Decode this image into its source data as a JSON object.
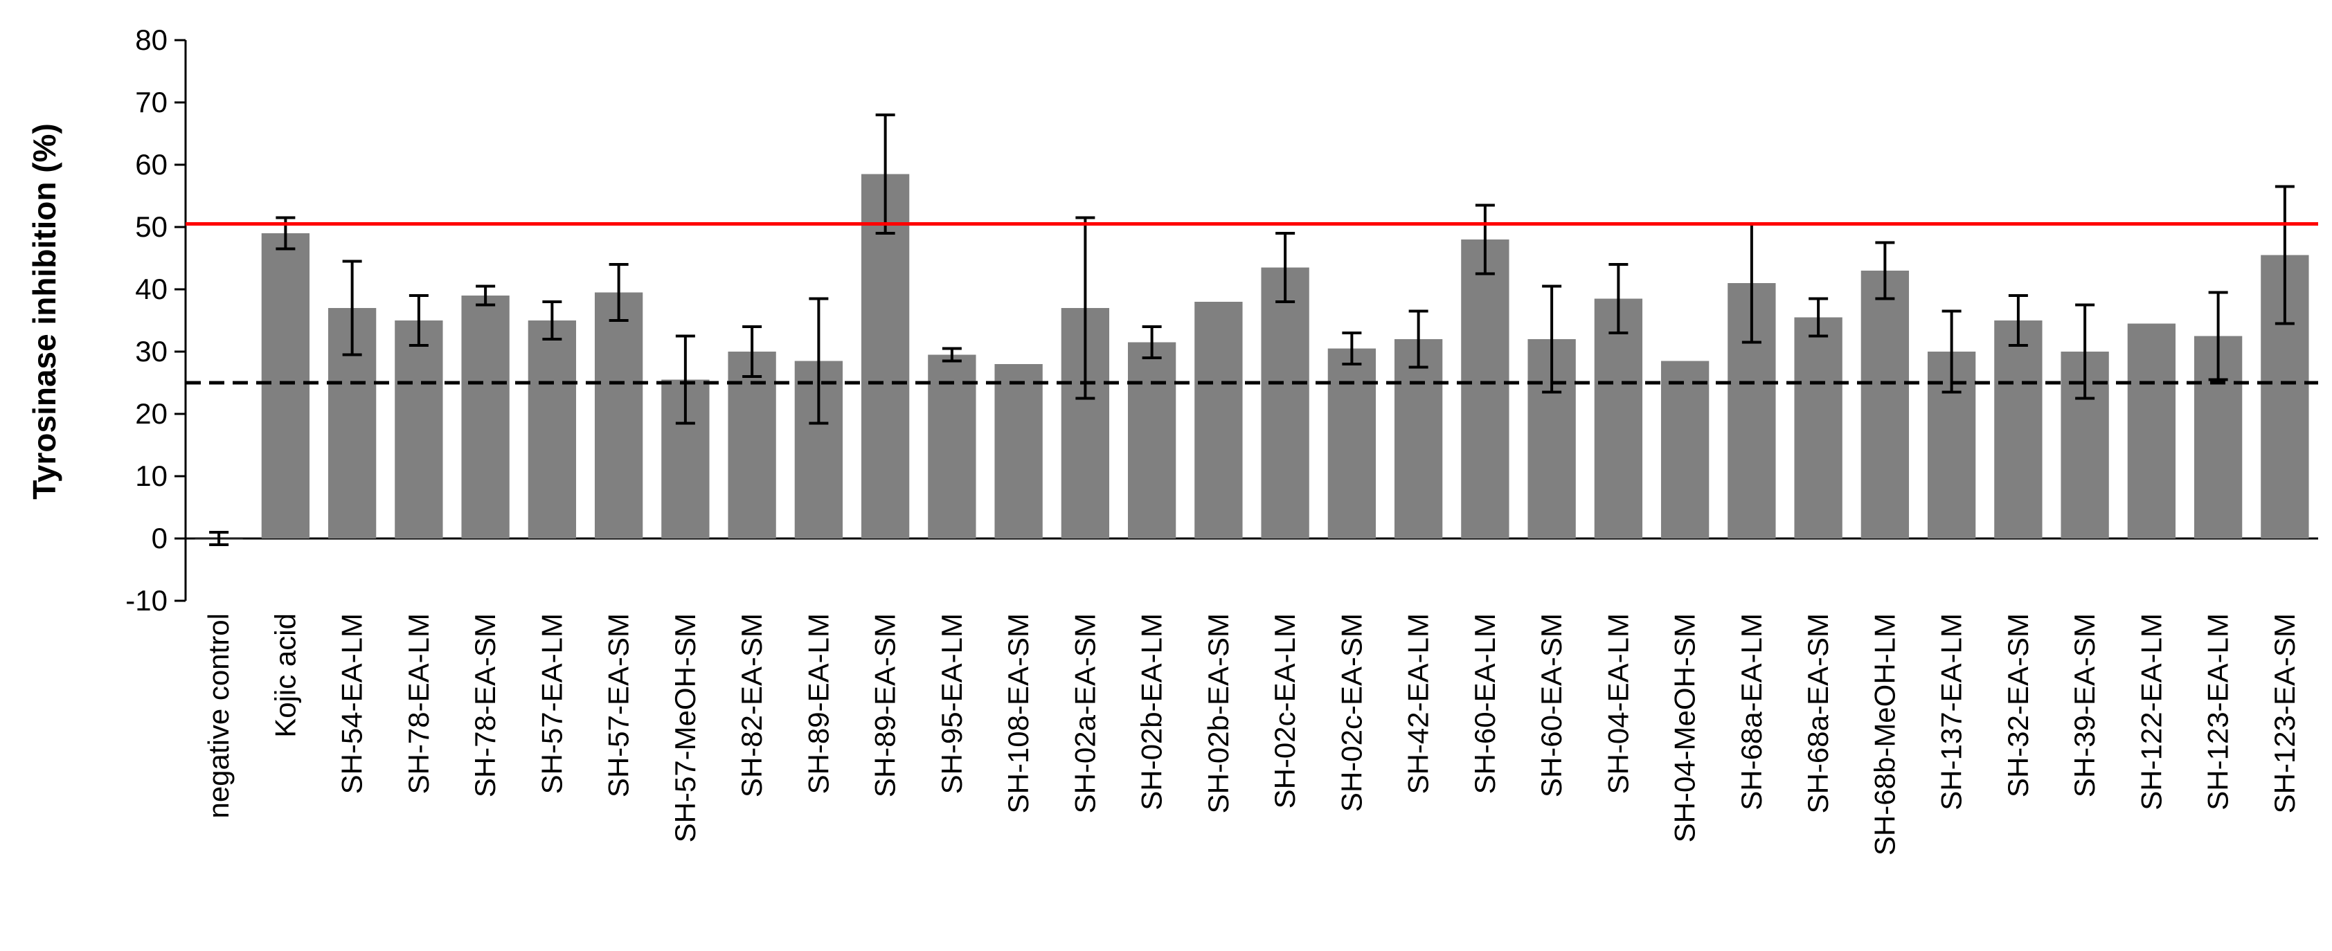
{
  "chart_data": {
    "type": "bar",
    "title": "",
    "xlabel": "",
    "ylabel": "Tyrosinase inhibition (%)",
    "ylim": [
      -10,
      80
    ],
    "yticks": [
      -10,
      0,
      10,
      20,
      30,
      40,
      50,
      60,
      70,
      80
    ],
    "grid": false,
    "bar_color": "#808080",
    "categories": [
      "negative control",
      "Kojic acid",
      "SH-54-EA-LM",
      "SH-78-EA-LM",
      "SH-78-EA-SM",
      "SH-57-EA-LM",
      "SH-57-EA-SM",
      "SH-57-MeOH-SM",
      "SH-82-EA-SM",
      "SH-89-EA-LM",
      "SH-89-EA-SM",
      "SH-95-EA-LM",
      "SH-108-EA-SM",
      "SH-02a-EA-SM",
      "SH-02b-EA-LM",
      "SH-02b-EA-SM",
      "SH-02c-EA-LM",
      "SH-02c-EA-SM",
      "SH-42-EA-LM",
      "SH-60-EA-LM",
      "SH-60-EA-SM",
      "SH-04-EA-LM",
      "SH-04-MeOH-SM",
      "SH-68a-EA-LM",
      "SH-68a-EA-SM",
      "SH-68b-MeOH-LM",
      "SH-137-EA-LM",
      "SH-32-EA-SM",
      "SH-39-EA-SM",
      "SH-122-EA-LM",
      "SH-123-EA-LM",
      "SH-123-EA-SM"
    ],
    "values": [
      0,
      49,
      37,
      35,
      39,
      35,
      39.5,
      25.5,
      30,
      28.5,
      58.5,
      29.5,
      28,
      37,
      31.5,
      38,
      43.5,
      30.5,
      32,
      48,
      32,
      38.5,
      28.5,
      41,
      35.5,
      43,
      30,
      35,
      30,
      34.5,
      32.5,
      45.5
    ],
    "errors": [
      1,
      2.5,
      7.5,
      4,
      1.5,
      3,
      4.5,
      7,
      4,
      10,
      9.5,
      1,
      0,
      14.5,
      2.5,
      0,
      5.5,
      2.5,
      4.5,
      5.5,
      8.5,
      5.5,
      0,
      9.5,
      3,
      4.5,
      6.5,
      4,
      7.5,
      0,
      7,
      11
    ],
    "reference_lines": [
      {
        "y": 50.5,
        "color": "#ff0000",
        "style": "solid"
      },
      {
        "y": 25,
        "color": "#000000",
        "style": "dashed"
      }
    ]
  }
}
